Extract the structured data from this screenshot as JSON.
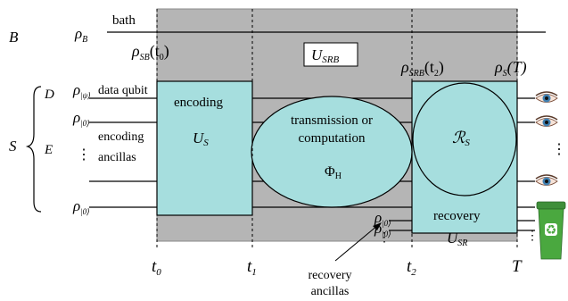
{
  "labels": {
    "B": "B",
    "S": "S",
    "D": "D",
    "E": "E",
    "rho_B": "ρ",
    "rho_B_sub": "B",
    "bath": "bath",
    "rho_psi": "ρ",
    "rho_psi_sub": "|ψ⟩",
    "data_qubit": "data qubit",
    "rho_0a": "ρ",
    "rho_0a_sub": "|0⟩",
    "encoding_ancillas_1": "encoding",
    "encoding_ancillas_2": "ancillas",
    "vdots_left": "⋮",
    "rho_0b": "ρ",
    "rho_0b_sub": "|0⟩",
    "rho_SB": "ρ",
    "rho_SB_sub": "SB",
    "rho_SB_arg": "(t",
    "rho_SB_arg_sub": "0",
    "rho_SB_close": ")",
    "U_SRB": "U",
    "U_SRB_sub": "SRB",
    "rho_SRB": "ρ",
    "rho_SRB_sub": "SRB",
    "rho_SRB_arg": "(t",
    "rho_SRB_arg_sub": "2",
    "rho_SRB_close": ")",
    "rho_S": "ρ",
    "rho_S_sub": "S",
    "rho_S_arg": "(T)",
    "encoding": "encoding",
    "U_S": "U",
    "U_S_sub": "S",
    "transmission_1": "transmission or",
    "transmission_2": "computation",
    "Phi": "Φ",
    "Phi_sub": "H",
    "R_S": "ℛ",
    "R_S_sub": "S",
    "recovery": "recovery",
    "U_SR": "U",
    "U_SR_sub": "SR",
    "rho_r1": "ρ",
    "rho_r1_sub": "|0⟩",
    "vdots_mid": "⋮",
    "rho_r2": "ρ",
    "rho_r2_sub": "|0⟩",
    "vdots_right": "⋮",
    "vdots_right2": "⋮",
    "recovery_ancillas_1": "recovery",
    "recovery_ancillas_2": "ancillas",
    "t0": "t",
    "t0_sub": "0",
    "t1": "t",
    "t1_sub": "1",
    "t2": "t",
    "t2_sub": "2",
    "T": "T"
  },
  "colors": {
    "bath_region": "#b5b5b5",
    "box_fill": "#a6dede",
    "line": "#000000"
  },
  "icons": [
    "eye-icon",
    "recycle-bin-icon"
  ]
}
